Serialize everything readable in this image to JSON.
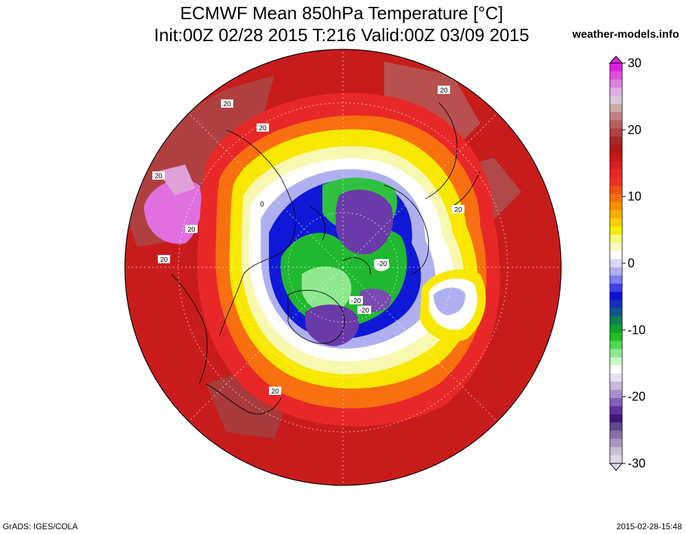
{
  "header": {
    "title_line1": "ECMWF Mean 850hPa Temperature [°C]",
    "title_line2": "Init:00Z 02/28 2015 T:216 Valid:00Z 03/09 2015",
    "site": "weather-models.info"
  },
  "footer": {
    "credit": "GrADS: IGES/COLA",
    "timestamp": "2015-02-28-15:48"
  },
  "colorbar": {
    "unit": "°C",
    "min": -30,
    "max": 30,
    "tick_labels": [
      "30",
      "20",
      "10",
      "0",
      "-10",
      "-20",
      "-30"
    ],
    "tick_values": [
      30,
      20,
      10,
      0,
      -10,
      -20,
      -30
    ],
    "colors_top_to_bottom": [
      "#e020e0",
      "#e050e0",
      "#e080e0",
      "#e0b0e0",
      "#d8c8d8",
      "#d0a8a8",
      "#c08080",
      "#b86060",
      "#b04040",
      "#a82828",
      "#b01818",
      "#c81818",
      "#d82020",
      "#e82828",
      "#f03020",
      "#f05010",
      "#f87008",
      "#f89000",
      "#f8b000",
      "#f8d000",
      "#f8f000",
      "#f8f878",
      "#f8f8c0",
      "#ffffff",
      "#d8d8f8",
      "#b0b0f0",
      "#8080f0",
      "#4040e8",
      "#1010d8",
      "#1030b8",
      "#105890",
      "#108050",
      "#10a030",
      "#20c020",
      "#50d850",
      "#90e890",
      "#c8f8c8",
      "#ffffff",
      "#e8e0f0",
      "#c8b8e0",
      "#a890d0",
      "#8060b8",
      "#6030a0",
      "#401878",
      "#604890",
      "#8870a8",
      "#a898c0",
      "#c8c0d8",
      "#e0d8e8"
    ]
  },
  "map": {
    "projection": "north polar stereographic",
    "contour_labels": [
      "20",
      "20",
      "20",
      "20",
      "20",
      "20",
      "20",
      "0",
      "-20",
      "-20",
      "-20",
      "20"
    ],
    "legend_colors": {
      "warm": "#c82020",
      "hot": "#e82828",
      "orange": "#f87010",
      "yellow": "#f8f000",
      "white": "#ffffff",
      "lavender": "#b0b0f0",
      "blue": "#1010d8",
      "green": "#20c020",
      "purple": "#6030a0"
    }
  }
}
